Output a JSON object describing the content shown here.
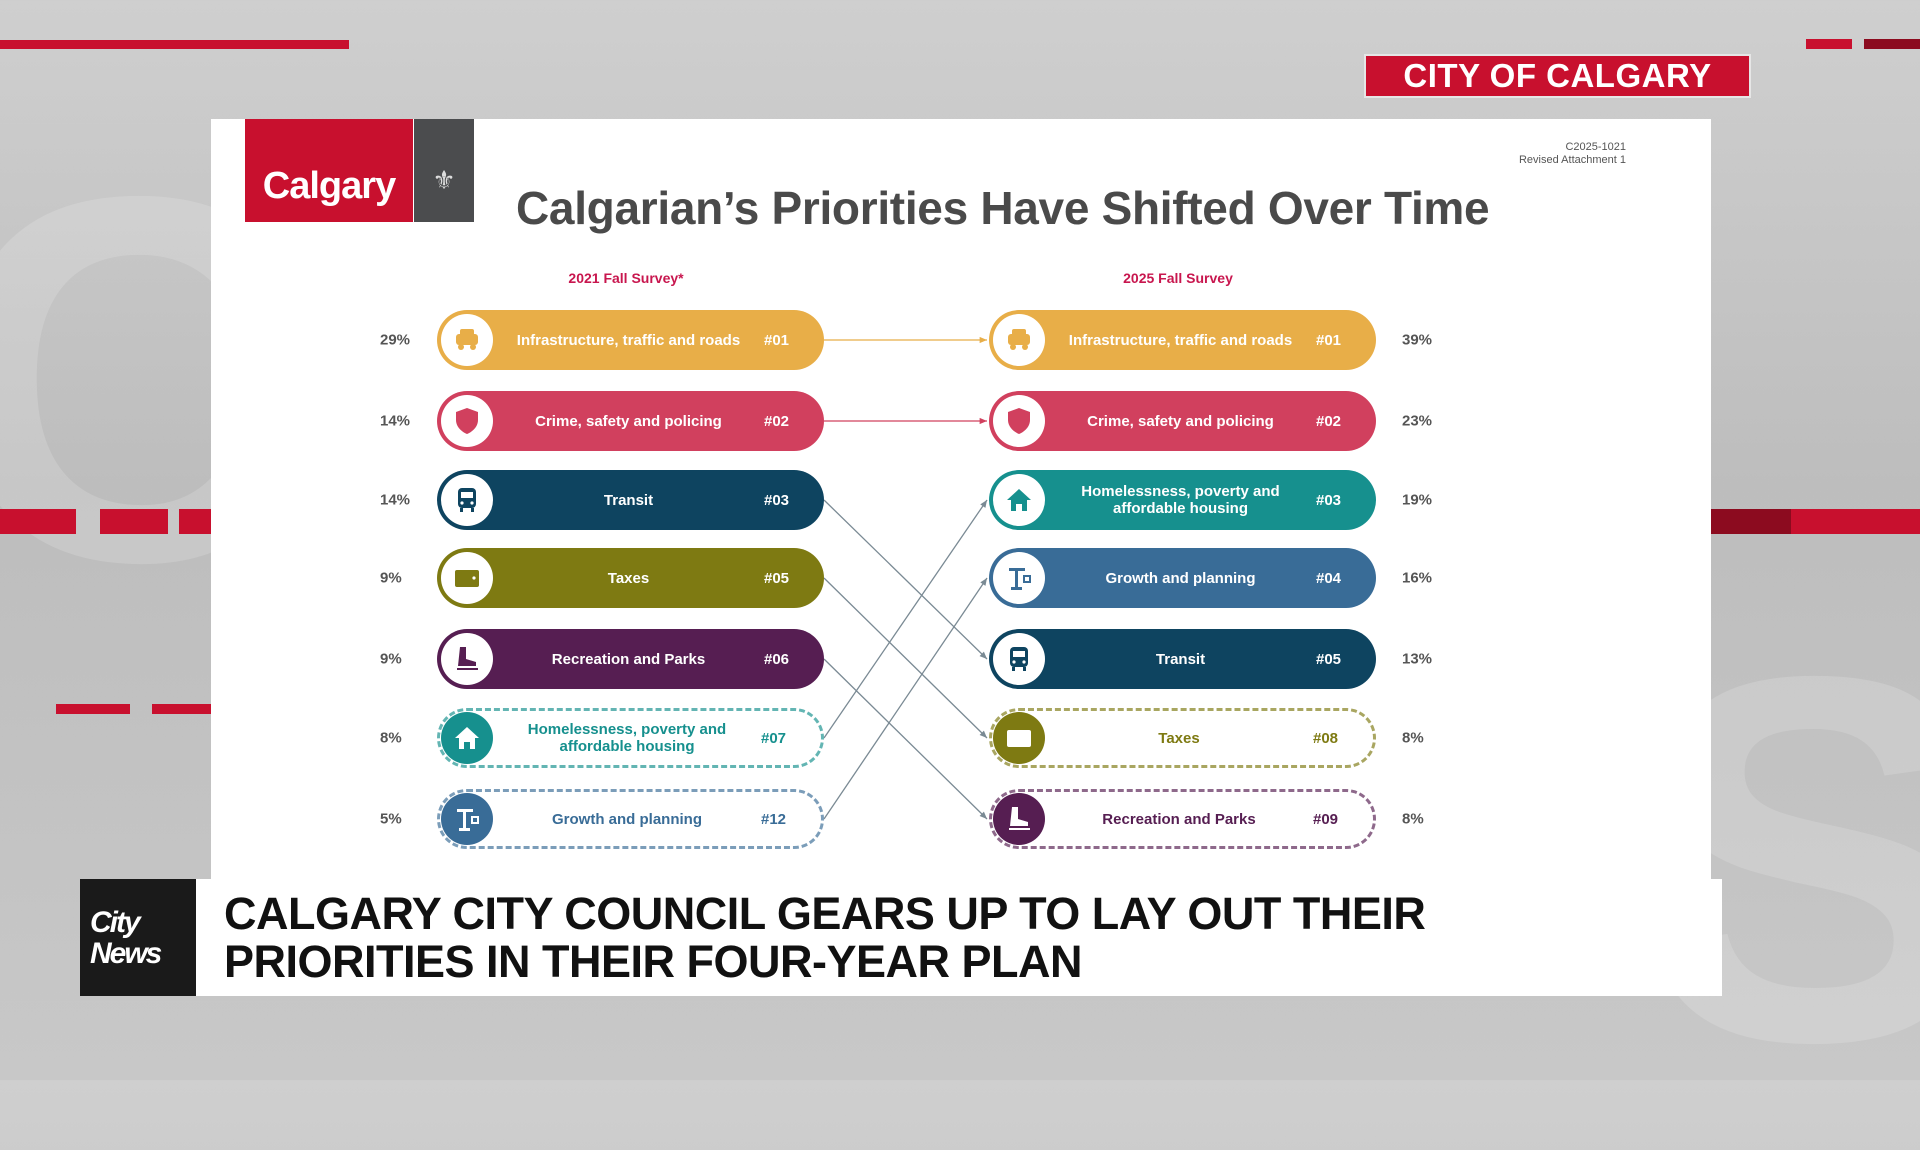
{
  "overlay_tag": "CITY OF CALGARY",
  "slide": {
    "logo_text": "Calgary",
    "doc_ref": [
      "C2025-1021",
      "Revised Attachment 1"
    ],
    "title": "Calgarian’s Priorities Have Shifted Over Time",
    "left_header": "2021 Fall Survey*",
    "right_header": "2025 Fall Survey",
    "left": [
      {
        "label": "Infrastructure, traffic and roads",
        "rank": "#01",
        "pct": "29%",
        "icon": "car-icon",
        "color": "#E8AE48",
        "dashed": false
      },
      {
        "label": "Crime, safety and policing",
        "rank": "#02",
        "pct": "14%",
        "icon": "shield-icon",
        "color": "#D1405E",
        "dashed": false
      },
      {
        "label": "Transit",
        "rank": "#03",
        "pct": "14%",
        "icon": "bus-icon",
        "color": "#0E4460",
        "dashed": false
      },
      {
        "label": "Taxes",
        "rank": "#05",
        "pct": "9%",
        "icon": "wallet-icon",
        "color": "#7E7A12",
        "dashed": false
      },
      {
        "label": "Recreation and Parks",
        "rank": "#06",
        "pct": "9%",
        "icon": "skate-icon",
        "color": "#561E52",
        "dashed": false
      },
      {
        "label": "Homelessness, poverty and affordable housing",
        "rank": "#07",
        "pct": "8%",
        "icon": "house-icon",
        "color": "#16908E",
        "dashed": true
      },
      {
        "label": "Growth and planning",
        "rank": "#12",
        "pct": "5%",
        "icon": "crane-icon",
        "color": "#396C97",
        "dashed": true
      }
    ],
    "right": [
      {
        "label": "Infrastructure, traffic and roads",
        "rank": "#01",
        "pct": "39%",
        "icon": "car-icon",
        "color": "#E8AE48",
        "dashed": false
      },
      {
        "label": "Crime, safety and policing",
        "rank": "#02",
        "pct": "23%",
        "icon": "shield-icon",
        "color": "#D1405E",
        "dashed": false
      },
      {
        "label": "Homelessness, poverty and affordable housing",
        "rank": "#03",
        "pct": "19%",
        "icon": "house-icon",
        "color": "#16908E",
        "dashed": false
      },
      {
        "label": "Growth and planning",
        "rank": "#04",
        "pct": "16%",
        "icon": "crane-icon",
        "color": "#396C97",
        "dashed": false
      },
      {
        "label": "Transit",
        "rank": "#05",
        "pct": "13%",
        "icon": "bus-icon",
        "color": "#0E4460",
        "dashed": false
      },
      {
        "label": "Taxes",
        "rank": "#08",
        "pct": "8%",
        "icon": "wallet-icon",
        "color": "#7E7A12",
        "dashed": true
      },
      {
        "label": "Recreation and Parks",
        "rank": "#09",
        "pct": "8%",
        "icon": "skate-icon",
        "color": "#561E52",
        "dashed": true
      }
    ],
    "links": [
      [
        0,
        0
      ],
      [
        1,
        1
      ],
      [
        2,
        4
      ],
      [
        3,
        5
      ],
      [
        4,
        6
      ],
      [
        5,
        2
      ],
      [
        6,
        3
      ]
    ]
  },
  "banner": {
    "logo": [
      "City",
      "News"
    ],
    "headline_lines": [
      "CALGARY CITY COUNCIL GEARS UP TO LAY OUT THEIR",
      "PRIORITIES IN THEIR FOUR-YEAR PLAN"
    ]
  }
}
